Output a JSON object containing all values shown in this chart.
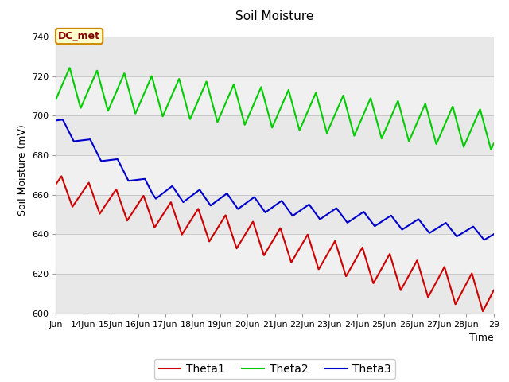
{
  "title": "Soil Moisture",
  "xlabel": "Time",
  "ylabel": "Soil Moisture (mV)",
  "ylim": [
    600,
    745
  ],
  "yticks": [
    600,
    620,
    640,
    660,
    680,
    700,
    720,
    740
  ],
  "xticklabels": [
    "Jun",
    "14Jun",
    "15Jun",
    "16Jun",
    "17Jun",
    "18Jun",
    "19Jun",
    "20Jun",
    "21Jun",
    "22Jun",
    "23Jun",
    "24Jun",
    "25Jun",
    "26Jun",
    "27Jun",
    "28Jun",
    "29"
  ],
  "legend_labels": [
    "Theta1",
    "Theta2",
    "Theta3"
  ],
  "legend_colors": [
    "#cc0000",
    "#00cc00",
    "#0000cc"
  ],
  "annotation_text": "DC_met",
  "annotation_bg": "#ffffcc",
  "annotation_border": "#cc8800",
  "annotation_text_color": "#880000",
  "bg_bands": [
    [
      600,
      620,
      "#e8e8e8"
    ],
    [
      620,
      640,
      "#f0f0f0"
    ],
    [
      640,
      660,
      "#e8e8e8"
    ],
    [
      660,
      680,
      "#f0f0f0"
    ],
    [
      680,
      700,
      "#e8e8e8"
    ],
    [
      700,
      720,
      "#f0f0f0"
    ],
    [
      720,
      740,
      "#e8e8e8"
    ]
  ],
  "line_width": 1.5,
  "title_fontsize": 11,
  "axis_fontsize": 9,
  "tick_fontsize": 8
}
